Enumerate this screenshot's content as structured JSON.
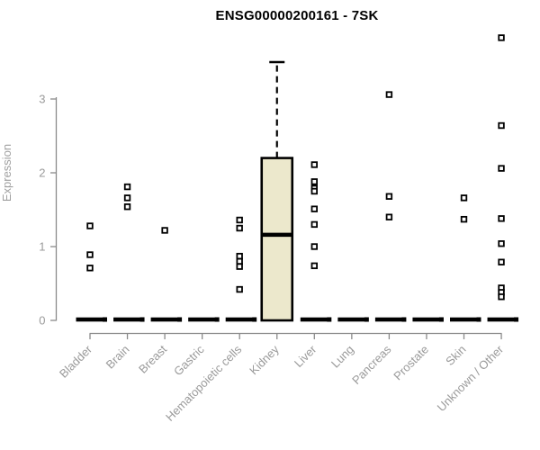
{
  "chart_data": {
    "type": "box",
    "title": "ENSG00000200161 - 7SK",
    "ylabel": "Expression",
    "xlabel": "",
    "ylim": [
      0,
      3.9
    ],
    "yticks": [
      0,
      1,
      2,
      3
    ],
    "grid": false,
    "legend_position": "none",
    "categories": [
      "Bladder",
      "Brain",
      "Breast",
      "Gastric",
      "Hematopoietic cells",
      "Kidney",
      "Liver",
      "Lung",
      "Pancreas",
      "Prostate",
      "Skin",
      "Unknown / Other"
    ],
    "groups": [
      {
        "name": "Bladder",
        "median": 0,
        "points": [
          1.28,
          0.89,
          0.71
        ]
      },
      {
        "name": "Brain",
        "median": 0,
        "points": [
          1.81,
          1.66,
          1.54
        ]
      },
      {
        "name": "Breast",
        "median": 0,
        "points": [
          1.22
        ]
      },
      {
        "name": "Gastric",
        "median": 0,
        "points": []
      },
      {
        "name": "Hematopoietic cells",
        "median": 0,
        "points": [
          1.36,
          1.25,
          0.87,
          0.8,
          0.73,
          0.42
        ]
      },
      {
        "name": "Kidney",
        "box": {
          "q1": 0,
          "median": 1.16,
          "q3": 2.2,
          "whisker_high": 3.5
        },
        "points": []
      },
      {
        "name": "Liver",
        "median": 0,
        "points": [
          2.11,
          1.88,
          1.79,
          1.75,
          1.51,
          1.3,
          1.0,
          0.74
        ]
      },
      {
        "name": "Lung",
        "median": 0,
        "points": []
      },
      {
        "name": "Pancreas",
        "median": 0,
        "points": [
          3.06,
          1.68,
          1.4
        ]
      },
      {
        "name": "Prostate",
        "median": 0,
        "points": []
      },
      {
        "name": "Skin",
        "median": 0,
        "points": [
          1.66,
          1.37
        ]
      },
      {
        "name": "Unknown / Other",
        "median": 0,
        "points": [
          3.83,
          2.64,
          2.06,
          1.38,
          1.04,
          0.79,
          0.44,
          0.38,
          0.32
        ]
      }
    ],
    "colors": {
      "box_fill": "#ECE8CC",
      "box_border": "#000000",
      "median": "#000000",
      "point": "#000000",
      "zero_bar": "#000000",
      "axis": "#8a8a8a",
      "tick_label": "#9a9a9a",
      "title": "#000000",
      "background": "#ffffff"
    }
  }
}
